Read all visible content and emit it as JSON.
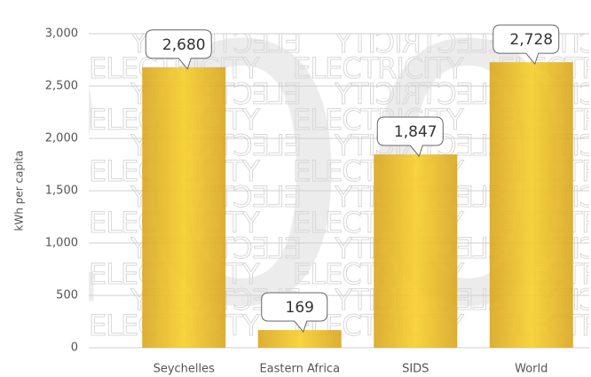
{
  "chart_data": {
    "type": "bar",
    "y_label": "kWh per capita",
    "watermark": "ELECTRICITY",
    "watermark_year": "2009",
    "categories": [
      "Seychelles",
      "Eastern Africa",
      "SIDS",
      "World"
    ],
    "values": [
      2680,
      169,
      1847,
      2728
    ],
    "value_labels": [
      "2,680",
      "169",
      "1,847",
      "2,728"
    ],
    "color": "#e8b820",
    "ylim": [
      0,
      3000
    ],
    "yticks": [
      0,
      500,
      {
        "value": 1000,
        "label": "1,000"
      },
      {
        "value": 1500,
        "label": "1,500"
      },
      {
        "value": 2000,
        "label": "2,000"
      },
      {
        "value": 2500,
        "label": "2,500"
      },
      {
        "value": 3000,
        "label": "3,000"
      }
    ],
    "grid": true
  }
}
